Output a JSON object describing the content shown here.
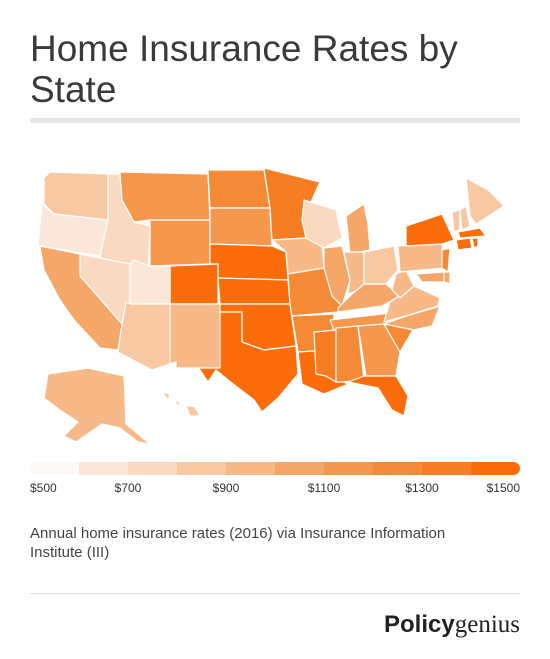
{
  "title": "Home Insurance Rates by State",
  "caption": "Annual home insurance rates (2016) via Insurance Information Institute (III)",
  "brand": {
    "part1": "Policy",
    "part2": "genius"
  },
  "legend": {
    "labels": [
      "$500",
      "$700",
      "$900",
      "$1100",
      "$1300",
      "$1500"
    ],
    "colors": [
      "#fbf8f5",
      "#fbe7d9",
      "#f9d9c0",
      "#f8c8a2",
      "#f6b987",
      "#f5a76a",
      "#f5984e",
      "#f58a36",
      "#f77d22",
      "#fa6d0a"
    ]
  },
  "map_data": {
    "type": "choropleth",
    "metric": "Annual home insurance rate",
    "units": "USD",
    "year": 2016,
    "color_scale": {
      "min": 500,
      "max": 1500
    },
    "states": [
      {
        "state": "WA",
        "bin": 3
      },
      {
        "state": "OR",
        "bin": 1
      },
      {
        "state": "ID",
        "bin": 2
      },
      {
        "state": "MT",
        "bin": 6
      },
      {
        "state": "WY",
        "bin": 6
      },
      {
        "state": "ND",
        "bin": 7
      },
      {
        "state": "SD",
        "bin": 6
      },
      {
        "state": "NE",
        "bin": 9
      },
      {
        "state": "KS",
        "bin": 9
      },
      {
        "state": "OK",
        "bin": 9
      },
      {
        "state": "TX",
        "bin": 9
      },
      {
        "state": "CO",
        "bin": 9
      },
      {
        "state": "NM",
        "bin": 4
      },
      {
        "state": "AZ",
        "bin": 3
      },
      {
        "state": "UT",
        "bin": 1
      },
      {
        "state": "NV",
        "bin": 2
      },
      {
        "state": "CA",
        "bin": 5
      },
      {
        "state": "MN",
        "bin": 8
      },
      {
        "state": "IA",
        "bin": 4
      },
      {
        "state": "MO",
        "bin": 7
      },
      {
        "state": "AR",
        "bin": 7
      },
      {
        "state": "LA",
        "bin": 9
      },
      {
        "state": "WI",
        "bin": 2
      },
      {
        "state": "IL",
        "bin": 5
      },
      {
        "state": "MI",
        "bin": 5
      },
      {
        "state": "IN",
        "bin": 4
      },
      {
        "state": "OH",
        "bin": 3
      },
      {
        "state": "KY",
        "bin": 5
      },
      {
        "state": "TN",
        "bin": 6
      },
      {
        "state": "MS",
        "bin": 8
      },
      {
        "state": "AL",
        "bin": 7
      },
      {
        "state": "GA",
        "bin": 6
      },
      {
        "state": "FL",
        "bin": 9
      },
      {
        "state": "SC",
        "bin": 7
      },
      {
        "state": "NC",
        "bin": 5
      },
      {
        "state": "VA",
        "bin": 4
      },
      {
        "state": "WV",
        "bin": 4
      },
      {
        "state": "PA",
        "bin": 4
      },
      {
        "state": "NY",
        "bin": 9
      },
      {
        "state": "VT",
        "bin": 3
      },
      {
        "state": "NH",
        "bin": 3
      },
      {
        "state": "ME",
        "bin": 3
      },
      {
        "state": "MA",
        "bin": 9
      },
      {
        "state": "CT",
        "bin": 9
      },
      {
        "state": "RI",
        "bin": 9
      },
      {
        "state": "NJ",
        "bin": 7
      },
      {
        "state": "DE",
        "bin": 5
      },
      {
        "state": "MD",
        "bin": 5
      },
      {
        "state": "AK",
        "bin": 4
      },
      {
        "state": "HI",
        "bin": 3
      }
    ]
  }
}
